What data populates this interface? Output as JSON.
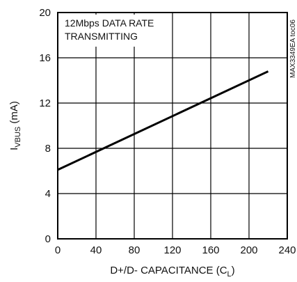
{
  "chart_data": {
    "type": "line",
    "title": "",
    "xlabel": "D+/D- CAPACITANCE (C",
    "xlabel_sub": "L",
    "xlabel_close": ")",
    "ylabel": "I",
    "ylabel_sub": "VBUS",
    "ylabel_unit": " (mA)",
    "xlim": [
      0,
      240
    ],
    "ylim": [
      0,
      20
    ],
    "xticks": [
      0,
      40,
      80,
      120,
      160,
      200,
      240
    ],
    "yticks": [
      0,
      4,
      8,
      12,
      16,
      20
    ],
    "grid": true,
    "annotation_lines": [
      "12Mbps DATA RATE",
      "TRANSMITTING"
    ],
    "figure_id": "MAX3349EA toc06",
    "series": [
      {
        "x": [
          0,
          220
        ],
        "y": [
          6.1,
          14.8
        ]
      }
    ]
  }
}
